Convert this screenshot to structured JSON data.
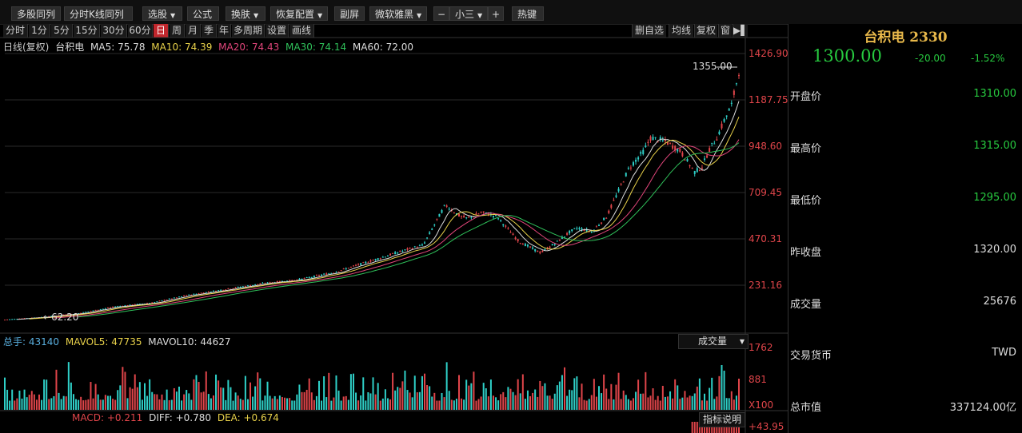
{
  "toolbar": {
    "buttons": [
      {
        "label": "多股同列",
        "caret": false
      },
      {
        "label": "分时K线同列",
        "caret": false
      },
      {
        "label": "选股",
        "caret": true
      },
      {
        "label": "公式",
        "caret": false
      },
      {
        "label": "换肤",
        "caret": true
      },
      {
        "label": "恢复配置",
        "caret": true
      },
      {
        "label": "副屏",
        "caret": false
      },
      {
        "label": "微软雅黑",
        "caret": true
      },
      {
        "label": "−",
        "caret": false
      },
      {
        "label": "小三",
        "caret": true
      },
      {
        "label": "+",
        "caret": false
      },
      {
        "label": "热键",
        "caret": false
      }
    ]
  },
  "periods": [
    "分时",
    "1分",
    "5分",
    "15分",
    "30分",
    "60分",
    "日",
    "周",
    "月",
    "季",
    "年",
    "多周期",
    "设置",
    "画线"
  ],
  "active_period": "日",
  "right_tools": [
    "删自选",
    "均线",
    "复权",
    "窗",
    "▶▌"
  ],
  "ma_legend": {
    "prefix": "日线(复权)",
    "name": "台积电",
    "items": [
      {
        "label": "MA5: 75.78",
        "color": "#dddddd"
      },
      {
        "label": "MA10: 74.39",
        "color": "#e8d14a"
      },
      {
        "label": "MA20: 74.43",
        "color": "#e0457a"
      },
      {
        "label": "MA30: 74.14",
        "color": "#2fc05a"
      },
      {
        "label": "MA60: 72.00",
        "color": "#dddddd"
      }
    ]
  },
  "price_axis": [
    "1426.90",
    "1187.75",
    "948.60",
    "709.45",
    "470.31",
    "231.16"
  ],
  "price_max_label": "1355.00",
  "price_min_label": "62.20",
  "volume_legend": {
    "items": [
      {
        "label": "总手: 43140",
        "color": "#5ab0e0"
      },
      {
        "label": "MAVOL5: 47735",
        "color": "#e8d14a"
      },
      {
        "label": "MAVOL10: 44627",
        "color": "#dddddd"
      }
    ]
  },
  "volume_axis": [
    "1762",
    "881",
    "X100"
  ],
  "volume_selector": "成交量",
  "macd_legend": {
    "items": [
      {
        "label": "MACD: +0.211",
        "color": "#e0454a"
      },
      {
        "label": "DIFF: +0.780",
        "color": "#dddddd"
      },
      {
        "label": "DEA: +0.674",
        "color": "#e8d14a"
      }
    ]
  },
  "macd_axis": "+43.95",
  "indicator_button": "指标说明",
  "stock": {
    "name": "台积电",
    "code": "2330",
    "price": "1300.00",
    "change": "-20.00",
    "change_pct": "-1.52%"
  },
  "quote_rows": [
    {
      "label": "开盘价",
      "value": "1310.00",
      "color": "#27c93f"
    },
    {
      "label": "最高价",
      "value": "1315.00",
      "color": "#27c93f"
    },
    {
      "label": "最低价",
      "value": "1295.00",
      "color": "#27c93f"
    },
    {
      "label": "昨收盘",
      "value": "1320.00",
      "color": "#dddddd"
    },
    {
      "label": "成交量",
      "value": "25676",
      "color": "#dddddd"
    },
    {
      "label": "交易货币",
      "value": "TWD",
      "color": "#dddddd"
    },
    {
      "label": "总市值",
      "value": "337124.00亿",
      "color": "#dddddd"
    }
  ],
  "chart_data": {
    "type": "line",
    "title": "",
    "price_series": {
      "x": [
        0,
        5,
        10,
        15,
        20,
        25,
        30,
        35,
        40,
        45,
        50,
        55,
        57,
        60,
        62,
        63,
        65,
        67,
        70,
        73,
        75,
        77,
        78,
        80,
        82,
        85,
        87,
        88,
        90,
        92,
        94,
        95,
        96,
        97,
        98,
        99,
        100
      ],
      "y": [
        62,
        75,
        95,
        130,
        150,
        190,
        220,
        250,
        270,
        310,
        370,
        430,
        450,
        660,
        600,
        590,
        620,
        600,
        470,
        410,
        460,
        520,
        540,
        520,
        600,
        850,
        940,
        1010,
        990,
        940,
        830,
        860,
        950,
        1010,
        1100,
        1180,
        1355
      ]
    },
    "ylim": [
      0,
      1426.9
    ]
  }
}
